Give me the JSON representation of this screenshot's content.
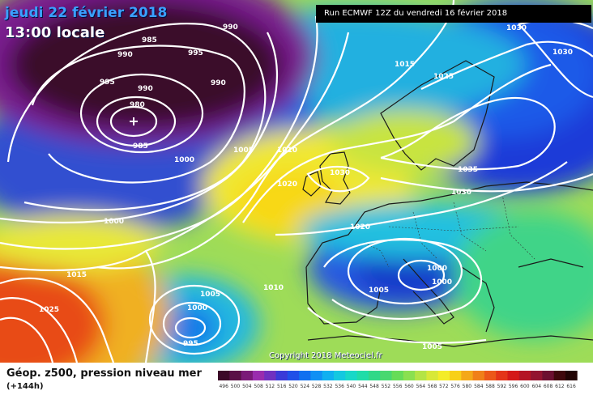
{
  "header": {
    "date": "jeudi 22 février 2018",
    "time": "13:00 locale",
    "run": "Run ECMWF 12Z du vendredi 16 février 2018"
  },
  "map": {
    "copyright": "Copyright 2018 Meteociel.fr",
    "pressure_labels": [
      "985",
      "990",
      "990",
      "995",
      "995",
      "990",
      "990",
      "980",
      "985",
      "1000",
      "1005",
      "1010",
      "1015",
      "1020",
      "1030",
      "1025",
      "1035",
      "1030",
      "1030",
      "1020",
      "1000",
      "1000",
      "1005",
      "1010",
      "1000",
      "1015",
      "1025",
      "1005",
      "1000",
      "995",
      "1005",
      "1030"
    ]
  },
  "legend": {
    "title": "Géop. z500, pression niveau mer",
    "lead": "(+144h)",
    "scale_values": [
      "496",
      "500",
      "504",
      "508",
      "512",
      "516",
      "520",
      "524",
      "528",
      "532",
      "536",
      "540",
      "544",
      "548",
      "552",
      "556",
      "560",
      "564",
      "568",
      "572",
      "576",
      "580",
      "584",
      "588",
      "592",
      "596",
      "600",
      "604",
      "608",
      "612",
      "616"
    ],
    "scale_colors": [
      "#3c0a28",
      "#5a1046",
      "#7a1a78",
      "#9a2cae",
      "#7030c0",
      "#3a3ad8",
      "#2050e8",
      "#1070f0",
      "#1090f4",
      "#10b0f0",
      "#14c8e0",
      "#18d8c8",
      "#20dca8",
      "#30d888",
      "#48d870",
      "#66dc58",
      "#8ae050",
      "#b4e446",
      "#d8e838",
      "#f4ec28",
      "#f8d018",
      "#f4a818",
      "#f08018",
      "#ec5818",
      "#e43418",
      "#d41818",
      "#b41424",
      "#921430",
      "#6c1030",
      "#40080c",
      "#220404"
    ]
  }
}
